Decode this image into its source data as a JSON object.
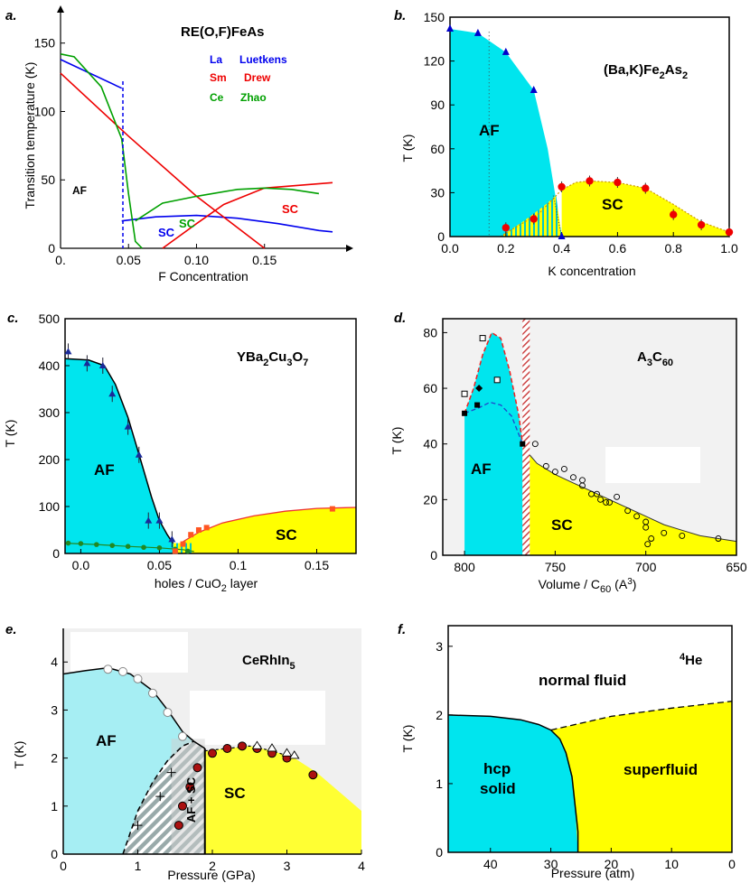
{
  "colors": {
    "af": "#00e5ee",
    "sc": "#ffff00",
    "axis": "#000000",
    "la": "#0000ee",
    "sm": "#ee0000",
    "ce": "#00a000",
    "hatch": "#cc3333"
  },
  "chart_data": [
    {
      "panel": "a.",
      "type": "line",
      "title": "RE(O,F)FeAs",
      "xlabel": "F Concentration",
      "ylabel": "Transition temperature  (K)",
      "xlim": [
        0,
        0.21
      ],
      "ylim": [
        0,
        165
      ],
      "xticks": [
        "0.",
        "0.05",
        "0.10",
        "0.15"
      ],
      "yticks": [
        "0",
        "50",
        "100",
        "150"
      ],
      "legend": [
        {
          "re": "La",
          "author": "Luetkens",
          "color": "#0000ee"
        },
        {
          "re": "Sm",
          "author": "Drew",
          "color": "#ee0000"
        },
        {
          "re": "Ce",
          "author": "Zhao",
          "color": "#00a000"
        }
      ],
      "series": [
        {
          "name": "La AF",
          "x": [
            0,
            0.045
          ],
          "y": [
            138,
            117
          ]
        },
        {
          "name": "La SC",
          "x": [
            0.045,
            0.07,
            0.1,
            0.13,
            0.16,
            0.19,
            0.2
          ],
          "y": [
            20,
            23,
            24,
            22,
            18,
            13,
            12
          ]
        },
        {
          "name": "Sm AF",
          "x": [
            0,
            0.05,
            0.1,
            0.15
          ],
          "y": [
            128,
            82,
            38,
            0
          ]
        },
        {
          "name": "Sm SC",
          "x": [
            0.075,
            0.1,
            0.12,
            0.15,
            0.2
          ],
          "y": [
            0,
            18,
            32,
            44,
            48
          ]
        },
        {
          "name": "Ce AF",
          "x": [
            0,
            0.01,
            0.03,
            0.045,
            0.05,
            0.055,
            0.06
          ],
          "y": [
            142,
            140,
            118,
            80,
            40,
            5,
            0
          ]
        },
        {
          "name": "Ce SC",
          "x": [
            0.055,
            0.075,
            0.1,
            0.13,
            0.15,
            0.17,
            0.19
          ],
          "y": [
            20,
            33,
            38,
            43,
            44,
            43,
            40
          ]
        }
      ],
      "labels": [
        "AF",
        "SC",
        "SC",
        "SC"
      ]
    },
    {
      "panel": "b.",
      "type": "area",
      "title": "(Ba,K)Fe2As2",
      "xlabel": "K concentration",
      "ylabel": "T  (K)",
      "xlim": [
        0,
        1.0
      ],
      "ylim": [
        0,
        150
      ],
      "xticks": [
        "0.0",
        "0.2",
        "0.4",
        "0.6",
        "0.8",
        "1.0"
      ],
      "yticks": [
        "0",
        "30",
        "60",
        "90",
        "120",
        "150"
      ],
      "af_points": {
        "x": [
          0,
          0.1,
          0.2,
          0.3,
          0.4
        ],
        "y": [
          142,
          139,
          126,
          100,
          0
        ]
      },
      "sc_points": {
        "x": [
          0.2,
          0.3,
          0.4,
          0.5,
          0.6,
          0.7,
          0.8,
          0.9,
          1.0
        ],
        "y": [
          6,
          12,
          34,
          38,
          37,
          33,
          15,
          8,
          3
        ]
      },
      "labels": [
        "AF",
        "SC"
      ]
    },
    {
      "panel": "c.",
      "type": "area",
      "title": "YBa2Cu3O7",
      "xlabel": "holes / CuO2 layer",
      "ylabel": "T  (K)",
      "xlim": [
        -0.01,
        0.175
      ],
      "ylim": [
        0,
        500
      ],
      "xticks": [
        "0.0",
        "0.05",
        "0.1",
        "0.15"
      ],
      "yticks": [
        "0",
        "100",
        "200",
        "300",
        "400",
        "500"
      ],
      "af_points": {
        "x": [
          -0.008,
          0.004,
          0.014,
          0.02,
          0.03,
          0.037,
          0.043,
          0.05,
          0.058
        ],
        "y": [
          430,
          405,
          400,
          340,
          270,
          210,
          70,
          70,
          30
        ]
      },
      "sc_points": {
        "x": [
          0.06,
          0.065,
          0.07,
          0.075,
          0.08,
          0.16
        ],
        "y": [
          5,
          20,
          40,
          50,
          55,
          95
        ]
      },
      "labels": [
        "AF",
        "SC"
      ]
    },
    {
      "panel": "d.",
      "type": "area",
      "title": "A3C60",
      "xlabel": "Volume / C60 (A3)",
      "ylabel": "T  (K)",
      "xlim": [
        800,
        650
      ],
      "ylim": [
        0,
        85
      ],
      "xticks": [
        "800",
        "750",
        "700",
        "650"
      ],
      "yticks": [
        "0",
        "20",
        "40",
        "60",
        "80"
      ],
      "sc_points": {
        "x": [
          761,
          755,
          750,
          745,
          740,
          735,
          730,
          725,
          720,
          710,
          700,
          690,
          680,
          660
        ],
        "y": [
          40,
          32,
          30,
          31,
          28,
          25,
          22,
          20,
          19,
          16,
          10,
          8,
          7,
          6
        ]
      },
      "labels": [
        "AF",
        "SC"
      ]
    },
    {
      "panel": "e.",
      "type": "area",
      "title": "CeRhIn5",
      "xlabel": "Pressure  (GPa)",
      "ylabel": "T  (K)",
      "xlim": [
        0,
        4
      ],
      "ylim": [
        0,
        4.7
      ],
      "xticks": [
        "0",
        "1",
        "2",
        "3",
        "4"
      ],
      "yticks": [
        "0",
        "1",
        "2",
        "3",
        "4"
      ],
      "af_points": {
        "x": [
          0.6,
          0.8,
          1.0,
          1.2,
          1.4,
          1.6
        ],
        "y": [
          3.85,
          3.8,
          3.65,
          3.35,
          2.95,
          2.45
        ]
      },
      "sc_points": {
        "x": [
          1.55,
          1.6,
          1.7,
          1.8,
          2.0,
          2.2,
          2.4,
          2.6,
          2.8,
          3.0,
          3.35
        ],
        "y": [
          0.6,
          1.0,
          1.4,
          1.8,
          2.1,
          2.2,
          2.25,
          2.2,
          2.1,
          2.0,
          1.65
        ]
      },
      "labels": [
        "AF",
        "SC",
        "AF + SC"
      ]
    },
    {
      "panel": "f.",
      "type": "area",
      "title": "4He",
      "xlabel": "Pressure  (atm)",
      "ylabel": "T  (K)",
      "xlim": [
        47,
        0
      ],
      "ylim": [
        0,
        3.3
      ],
      "xticks": [
        "40",
        "30",
        "20",
        "10",
        "0"
      ],
      "yticks": [
        "0",
        "1",
        "2",
        "3"
      ],
      "labels": [
        "normal  fluid",
        "hcp solid",
        "superfluid"
      ]
    }
  ],
  "panels": {
    "a": {
      "label": "a.",
      "title": "RE(O,F)FeAs",
      "xlabel": "F Concentration",
      "ylabel": "Transition temperature  (K)",
      "af": "AF",
      "sc1": "SC",
      "sc2": "SC",
      "sc3": "SC",
      "leg1a": "La",
      "leg1b": "Luetkens",
      "leg2a": "Sm",
      "leg2b": "Drew",
      "leg3a": "Ce",
      "leg3b": "Zhao"
    },
    "b": {
      "label": "b.",
      "title_main": "(Ba,K)Fe",
      "title_sub1": "2",
      "title_mid": "As",
      "title_sub2": "2",
      "xlabel": "K concentration",
      "ylabel": "T  (K)",
      "af": "AF",
      "sc": "SC"
    },
    "c": {
      "label": "c.",
      "title_main": "YBa",
      "title_sub1": "2",
      "title_mid1": "Cu",
      "title_sub2": "3",
      "title_mid2": "O",
      "title_sub3": "7",
      "xlabel_main": "holes / CuO",
      "xlabel_sub": "2",
      "xlabel_end": " layer",
      "ylabel": "T  (K)",
      "af": "AF",
      "sc": "SC"
    },
    "d": {
      "label": "d.",
      "title_main": "A",
      "title_sub1": "3",
      "title_mid": "C",
      "title_sub2": "60",
      "xlabel_main": "Volume / C",
      "xlabel_sub": "60",
      "xlabel_end": " (A",
      "xlabel_sup": "3",
      "xlabel_close": ")",
      "ylabel": "T  (K)",
      "af": "AF",
      "sc": "SC"
    },
    "e": {
      "label": "e.",
      "title_main": "CeRhIn",
      "title_sub": "5",
      "xlabel": "Pressure  (GPa)",
      "ylabel": "T  (K)",
      "af": "AF",
      "sc": "SC",
      "mixed": "AF + SC"
    },
    "f": {
      "label": "f.",
      "title_sup": "4",
      "title_main": "He",
      "xlabel": "Pressure  (atm)",
      "ylabel": "T  (K)",
      "normal": "normal  fluid",
      "hcp1": "hcp",
      "hcp2": "solid",
      "superfluid": "superfluid"
    }
  }
}
